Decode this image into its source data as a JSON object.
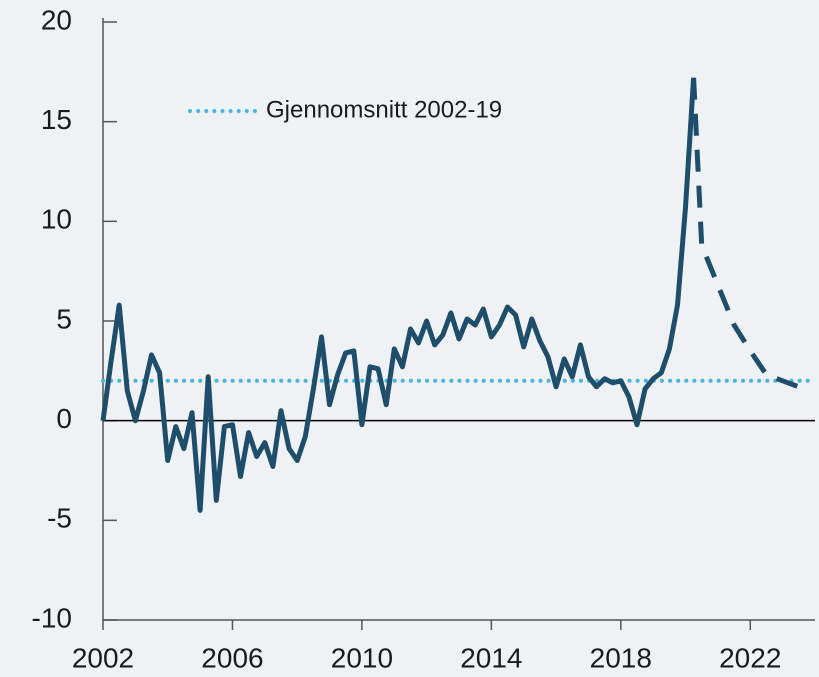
{
  "chart_data": {
    "type": "line",
    "xlim": [
      2002,
      2024
    ],
    "xticks": [
      2002,
      2006,
      2010,
      2014,
      2018,
      2022
    ],
    "ylim": [
      -10,
      20
    ],
    "yticks": [
      -10,
      -5,
      0,
      5,
      10,
      15,
      20
    ],
    "series": [
      {
        "color": "#1f4e6b",
        "style": "solid",
        "x": [
          2002.0,
          2002.25,
          2002.5,
          2002.75,
          2003.0,
          2003.25,
          2003.5,
          2003.75,
          2004.0,
          2004.25,
          2004.5,
          2004.75,
          2005.0,
          2005.25,
          2005.5,
          2005.75,
          2006.0,
          2006.25,
          2006.5,
          2006.75,
          2007.0,
          2007.25,
          2007.5,
          2007.75,
          2008.0,
          2008.25,
          2008.5,
          2008.75,
          2009.0,
          2009.25,
          2009.5,
          2009.75,
          2010.0,
          2010.25,
          2010.5,
          2010.75,
          2011.0,
          2011.25,
          2011.5,
          2011.75,
          2012.0,
          2012.25,
          2012.5,
          2012.75,
          2013.0,
          2013.25,
          2013.5,
          2013.75,
          2014.0,
          2014.25,
          2014.5,
          2014.75,
          2015.0,
          2015.25,
          2015.5,
          2015.75,
          2016.0,
          2016.25,
          2016.5,
          2016.75,
          2017.0,
          2017.25,
          2017.5,
          2017.75,
          2018.0,
          2018.25,
          2018.5,
          2018.75,
          2019.0,
          2019.25,
          2019.5,
          2019.75,
          2020.0,
          2020.25
        ],
        "values": [
          0,
          3,
          5.8,
          1.5,
          0,
          1.5,
          3.3,
          2.4,
          -2.0,
          -0.3,
          -1.4,
          0.4,
          -4.5,
          2.2,
          -4.0,
          -0.3,
          -0.2,
          -2.8,
          -0.6,
          -1.8,
          -1.1,
          -2.3,
          0.5,
          -1.4,
          -2.0,
          -0.8,
          1.6,
          4.2,
          0.8,
          2.3,
          3.4,
          3.5,
          -0.2,
          2.7,
          2.6,
          0.8,
          3.6,
          2.7,
          4.6,
          3.9,
          5.0,
          3.8,
          4.3,
          5.4,
          4.1,
          5.1,
          4.8,
          5.6,
          4.2,
          4.8,
          5.7,
          5.3,
          3.7,
          5.1,
          4.0,
          3.2,
          1.7,
          3.1,
          2.2,
          3.8,
          2.2,
          1.7,
          2.1,
          1.9,
          2.0,
          1.2,
          -0.2,
          1.6,
          2.1,
          2.4,
          3.6,
          5.8,
          10.7,
          17.2
        ]
      },
      {
        "color": "#1f4e6b",
        "style": "dashed",
        "x": [
          2020.25,
          2020.5,
          2021.0,
          2021.5,
          2022.0,
          2022.5,
          2023.0,
          2023.5,
          2023.75
        ],
        "values": [
          17.2,
          8.8,
          6.8,
          4.8,
          3.5,
          2.3,
          2.0,
          1.7,
          1.6
        ]
      }
    ],
    "reference_line": {
      "label": "Gjennomsnitt 2002-19",
      "value": 2.0,
      "color": "#4db3dc"
    }
  }
}
